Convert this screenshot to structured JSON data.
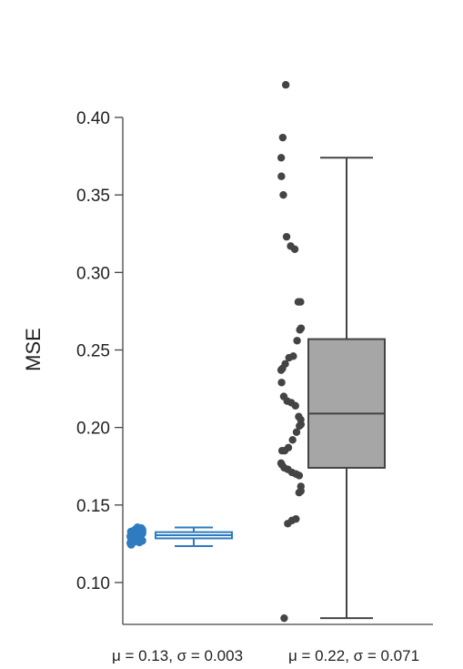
{
  "chart_data": {
    "type": "box",
    "title": "",
    "xlabel": "",
    "ylabel": "MSE",
    "ylim": [
      0.075,
      0.42
    ],
    "yticks": [
      0.1,
      0.15,
      0.2,
      0.25,
      0.3,
      0.35,
      0.4
    ],
    "ytick_labels": [
      "0.10",
      "0.15",
      "0.20",
      "0.25",
      "0.30",
      "0.35",
      "0.40"
    ],
    "grid": false,
    "series": [
      {
        "stat_label": "μ = 0.13, σ = 0.003",
        "color": "#2e7bbf",
        "box": {
          "whisker_low": 0.1235,
          "q1": 0.1285,
          "median": 0.1305,
          "q3": 0.1325,
          "whisker_high": 0.1355
        },
        "points": [
          0.1285,
          0.1295,
          0.1305,
          0.1315,
          0.1325,
          0.1335,
          0.1345,
          0.1355,
          0.1265,
          0.1275,
          0.1245,
          0.1255,
          0.13,
          0.131,
          0.129,
          0.132,
          0.128,
          0.133,
          0.127,
          0.134,
          0.135,
          0.126,
          0.1302,
          0.1308,
          0.1318,
          0.1288,
          0.1298,
          0.1328,
          0.1278,
          0.1338
        ]
      },
      {
        "stat_label": "μ = 0.22, σ = 0.071",
        "color": "#a6a6a6",
        "box": {
          "whisker_low": 0.077,
          "q1": 0.174,
          "median": 0.209,
          "q3": 0.257,
          "whisker_high": 0.374
        },
        "points": [
          0.421,
          0.387,
          0.374,
          0.362,
          0.35,
          0.323,
          0.317,
          0.315,
          0.281,
          0.281,
          0.264,
          0.263,
          0.256,
          0.246,
          0.245,
          0.241,
          0.238,
          0.237,
          0.229,
          0.22,
          0.217,
          0.216,
          0.214,
          0.207,
          0.205,
          0.202,
          0.201,
          0.197,
          0.192,
          0.187,
          0.185,
          0.185,
          0.177,
          0.176,
          0.174,
          0.173,
          0.171,
          0.17,
          0.169,
          0.162,
          0.159,
          0.158,
          0.141,
          0.14,
          0.138,
          0.077
        ]
      }
    ]
  }
}
